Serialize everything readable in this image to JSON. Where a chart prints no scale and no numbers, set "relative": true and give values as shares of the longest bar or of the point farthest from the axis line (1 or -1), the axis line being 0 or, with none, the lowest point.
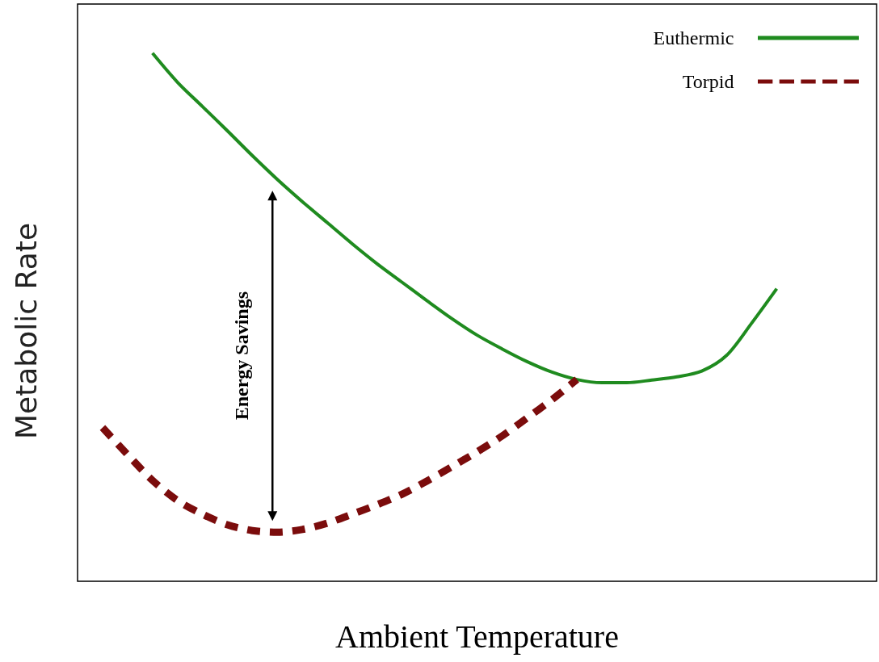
{
  "chart_data": {
    "type": "line",
    "relative": true,
    "xlabel": "Ambient Temperature",
    "ylabel": "Metabolic Rate",
    "categories": [
      null,
      null,
      null,
      null,
      null,
      null,
      null,
      null,
      null,
      null,
      null,
      null,
      null,
      null,
      null,
      null,
      null,
      null,
      null,
      null,
      null,
      null,
      null,
      null,
      null,
      null,
      null,
      null,
      null,
      null,
      null,
      null,
      null
    ],
    "series": [
      {
        "name": "Euthermic",
        "color": "#1f8b1f",
        "line_style": "solid",
        "values": [
          null,
          null,
          null,
          1.0,
          0.945,
          0.899,
          0.853,
          0.806,
          0.761,
          0.719,
          0.679,
          0.639,
          0.601,
          0.566,
          0.531,
          0.497,
          0.466,
          0.44,
          0.416,
          0.396,
          0.382,
          0.376,
          0.376,
          0.381,
          0.387,
          0.398,
          0.428,
          0.489,
          0.554,
          null,
          null,
          null,
          null
        ]
      },
      {
        "name": "Torpid",
        "color": "#7b0c0c",
        "line_style": "dashed",
        "values": [
          null,
          0.291,
          0.24,
          0.191,
          0.153,
          0.127,
          0.107,
          0.096,
          0.093,
          0.098,
          0.11,
          0.127,
          0.145,
          0.165,
          0.19,
          0.217,
          0.245,
          0.275,
          0.309,
          0.344,
          0.382,
          null,
          null,
          null,
          null,
          null,
          null,
          null,
          null,
          null,
          null,
          null,
          null
        ]
      }
    ],
    "annotations": [
      "Energy Savings"
    ],
    "legend": "top right",
    "marker": "none",
    "grid": false
  }
}
